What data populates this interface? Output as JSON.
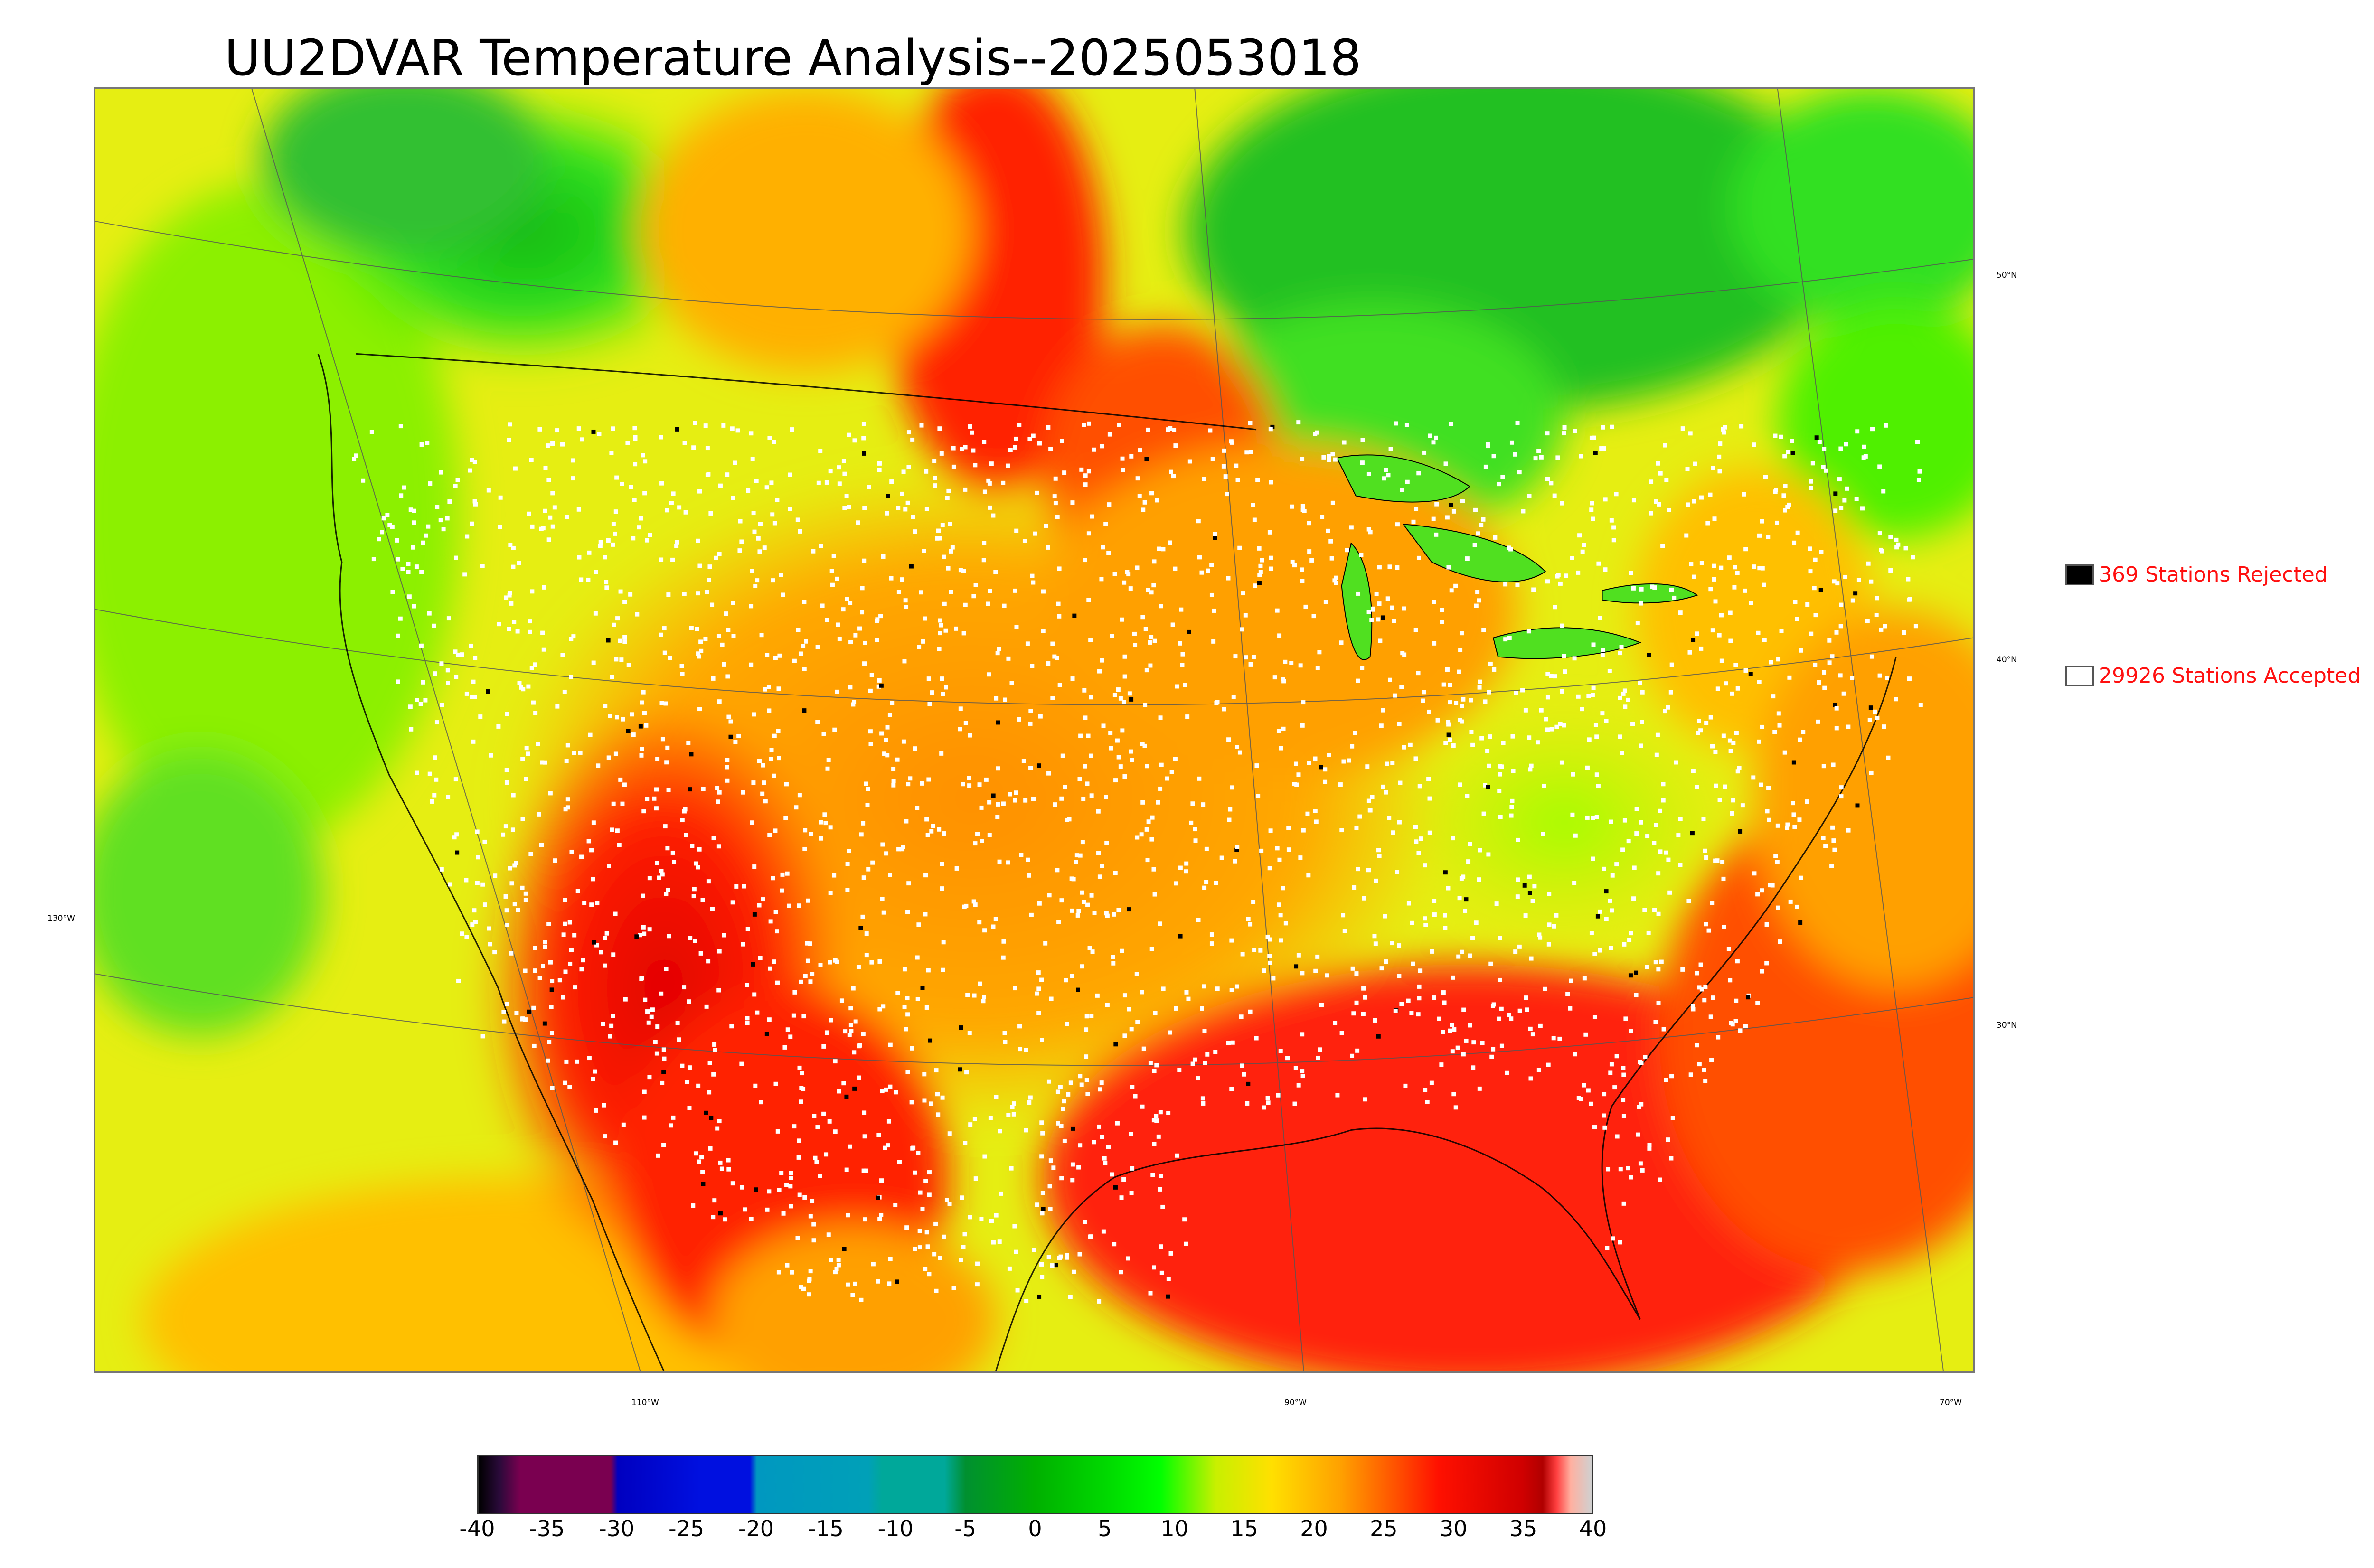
{
  "title": "UU2DVAR Temperature Analysis--2025053018",
  "legend": {
    "rejected": {
      "label": "369 Stations Rejected",
      "color": "#000000"
    },
    "accepted": {
      "label": "29926 Stations Accepted",
      "color": "#ffffff"
    },
    "text_color": "#ff1010"
  },
  "lat_labels": [
    "50°N",
    "40°N",
    "30°N"
  ],
  "lon_labels": [
    "130°W",
    "110°W",
    "90°W",
    "70°W"
  ],
  "colorbar": {
    "ticks": [
      "-40",
      "-35",
      "-30",
      "-25",
      "-20",
      "-15",
      "-10",
      "-5",
      "0",
      "5",
      "10",
      "15",
      "20",
      "25",
      "30",
      "35",
      "40"
    ],
    "range": [
      -40,
      40
    ],
    "stops": [
      {
        "v": -40,
        "c": "#000000"
      },
      {
        "v": -38.5,
        "c": "#2a0a3a"
      },
      {
        "v": -37,
        "c": "#7a0050"
      },
      {
        "v": -30.5,
        "c": "#7a0050"
      },
      {
        "v": -30,
        "c": "#0000c0"
      },
      {
        "v": -24,
        "c": "#0010e0"
      },
      {
        "v": -20.5,
        "c": "#0010e0"
      },
      {
        "v": -20,
        "c": "#0098c0"
      },
      {
        "v": -12,
        "c": "#00a0b8"
      },
      {
        "v": -11,
        "c": "#00a89a"
      },
      {
        "v": -6.5,
        "c": "#00a89a"
      },
      {
        "v": -5,
        "c": "#009030"
      },
      {
        "v": 0,
        "c": "#00b000"
      },
      {
        "v": 5,
        "c": "#00d800"
      },
      {
        "v": 9,
        "c": "#00ff00"
      },
      {
        "v": 13,
        "c": "#c8f000"
      },
      {
        "v": 17,
        "c": "#ffe000"
      },
      {
        "v": 22,
        "c": "#ffa000"
      },
      {
        "v": 26,
        "c": "#ff5000"
      },
      {
        "v": 29,
        "c": "#ff1000"
      },
      {
        "v": 35,
        "c": "#d00000"
      },
      {
        "v": 36.5,
        "c": "#b00000"
      },
      {
        "v": 37.5,
        "c": "#ff4040"
      },
      {
        "v": 38.5,
        "c": "#ffb0a0"
      },
      {
        "v": 40,
        "c": "#d0d0d0"
      }
    ]
  },
  "colors": {
    "cold": "#20d020",
    "cool": "#90ff00",
    "mild": "#e8ee10",
    "warm": "#ffa000",
    "hot": "#ff2000",
    "ocean_warm": "#ff3010",
    "station": "#ffffff",
    "rejected_station": "#000000"
  }
}
